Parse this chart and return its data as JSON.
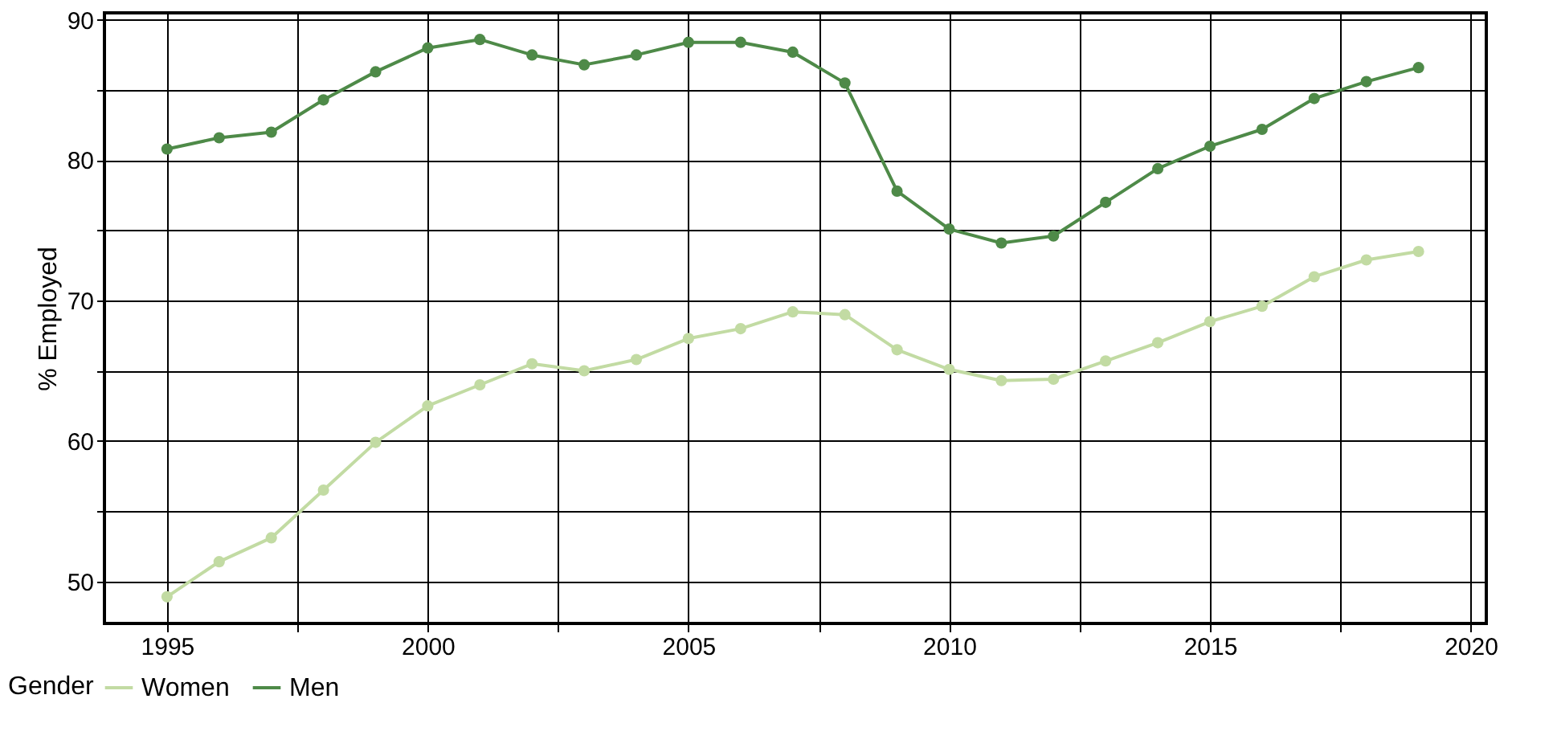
{
  "chart_data": {
    "type": "line",
    "ylabel": "% Employed",
    "legend_title": "Gender",
    "legend": "bottom left",
    "grid": true,
    "marker": "circle",
    "line_style": "solid",
    "x": [
      1995,
      1996,
      1997,
      1998,
      1999,
      2000,
      2001,
      2002,
      2003,
      2004,
      2005,
      2006,
      2007,
      2008,
      2009,
      2010,
      2011,
      2012,
      2013,
      2014,
      2015,
      2016,
      2017,
      2018,
      2019
    ],
    "xlim": [
      1993.8,
      2020.3
    ],
    "ylim": [
      47,
      90.5
    ],
    "xticks": [
      1995,
      {
        "value": 1997.5,
        "label": null
      },
      2000,
      {
        "value": 2002.5,
        "label": null
      },
      2005,
      {
        "value": 2007.5,
        "label": null
      },
      2010,
      {
        "value": 2012.5,
        "label": null
      },
      2015,
      {
        "value": 2017.5,
        "label": null
      },
      2020
    ],
    "yticks": [
      50,
      {
        "value": 55,
        "label": null
      },
      60,
      {
        "value": 65,
        "label": null
      },
      70,
      {
        "value": 75,
        "label": null
      },
      80,
      {
        "value": 85,
        "label": null
      },
      90
    ],
    "series": [
      {
        "name": "Women",
        "color": "#c2dba3",
        "values": [
          48.9,
          51.4,
          53.1,
          56.5,
          59.9,
          62.5,
          64.0,
          65.5,
          65.0,
          65.8,
          67.3,
          68.0,
          69.2,
          69.0,
          66.5,
          65.1,
          64.3,
          64.4,
          65.7,
          67.0,
          68.5,
          69.6,
          71.7,
          72.9,
          73.5
        ]
      },
      {
        "name": "Men",
        "color": "#4e8a48",
        "values": [
          80.8,
          81.6,
          82.0,
          84.3,
          86.3,
          88.0,
          88.6,
          87.5,
          86.8,
          87.5,
          88.4,
          88.4,
          87.7,
          85.5,
          77.8,
          75.1,
          74.1,
          74.6,
          77.0,
          79.4,
          81.0,
          82.2,
          84.4,
          85.6,
          86.6
        ]
      }
    ]
  }
}
